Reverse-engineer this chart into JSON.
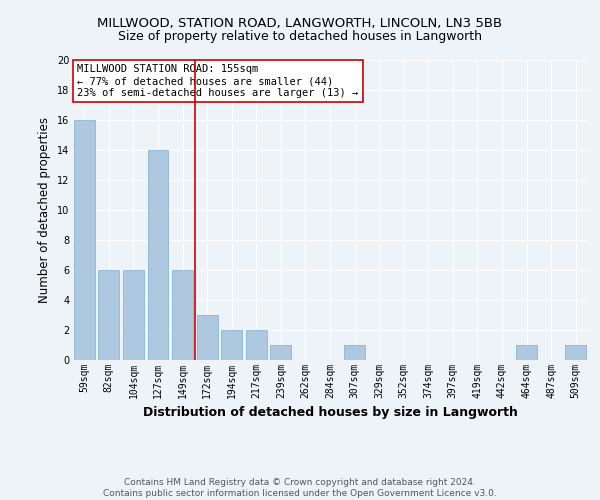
{
  "title": "MILLWOOD, STATION ROAD, LANGWORTH, LINCOLN, LN3 5BB",
  "subtitle": "Size of property relative to detached houses in Langworth",
  "xlabel": "Distribution of detached houses by size in Langworth",
  "ylabel": "Number of detached properties",
  "bar_labels": [
    "59sqm",
    "82sqm",
    "104sqm",
    "127sqm",
    "149sqm",
    "172sqm",
    "194sqm",
    "217sqm",
    "239sqm",
    "262sqm",
    "284sqm",
    "307sqm",
    "329sqm",
    "352sqm",
    "374sqm",
    "397sqm",
    "419sqm",
    "442sqm",
    "464sqm",
    "487sqm",
    "509sqm"
  ],
  "bar_values": [
    16,
    6,
    6,
    14,
    6,
    3,
    2,
    2,
    1,
    0,
    0,
    1,
    0,
    0,
    0,
    0,
    0,
    0,
    1,
    0,
    1
  ],
  "bar_color": "#aec8e0",
  "bar_edge_color": "#7aafd4",
  "reference_line_x": 4.5,
  "reference_line_color": "#cc0000",
  "annotation_text": "MILLWOOD STATION ROAD: 155sqm\n← 77% of detached houses are smaller (44)\n23% of semi-detached houses are larger (13) →",
  "annotation_box_color": "#ffffff",
  "annotation_box_edge": "#cc0000",
  "ylim": [
    0,
    20
  ],
  "yticks": [
    0,
    2,
    4,
    6,
    8,
    10,
    12,
    14,
    16,
    18,
    20
  ],
  "footer": "Contains HM Land Registry data © Crown copyright and database right 2024.\nContains public sector information licensed under the Open Government Licence v3.0.",
  "bg_color": "#eef3f8",
  "grid_color": "#ffffff",
  "title_fontsize": 9.5,
  "subtitle_fontsize": 9,
  "axis_label_fontsize": 8.5,
  "tick_fontsize": 7,
  "footer_fontsize": 6.5,
  "annotation_fontsize": 7.5
}
